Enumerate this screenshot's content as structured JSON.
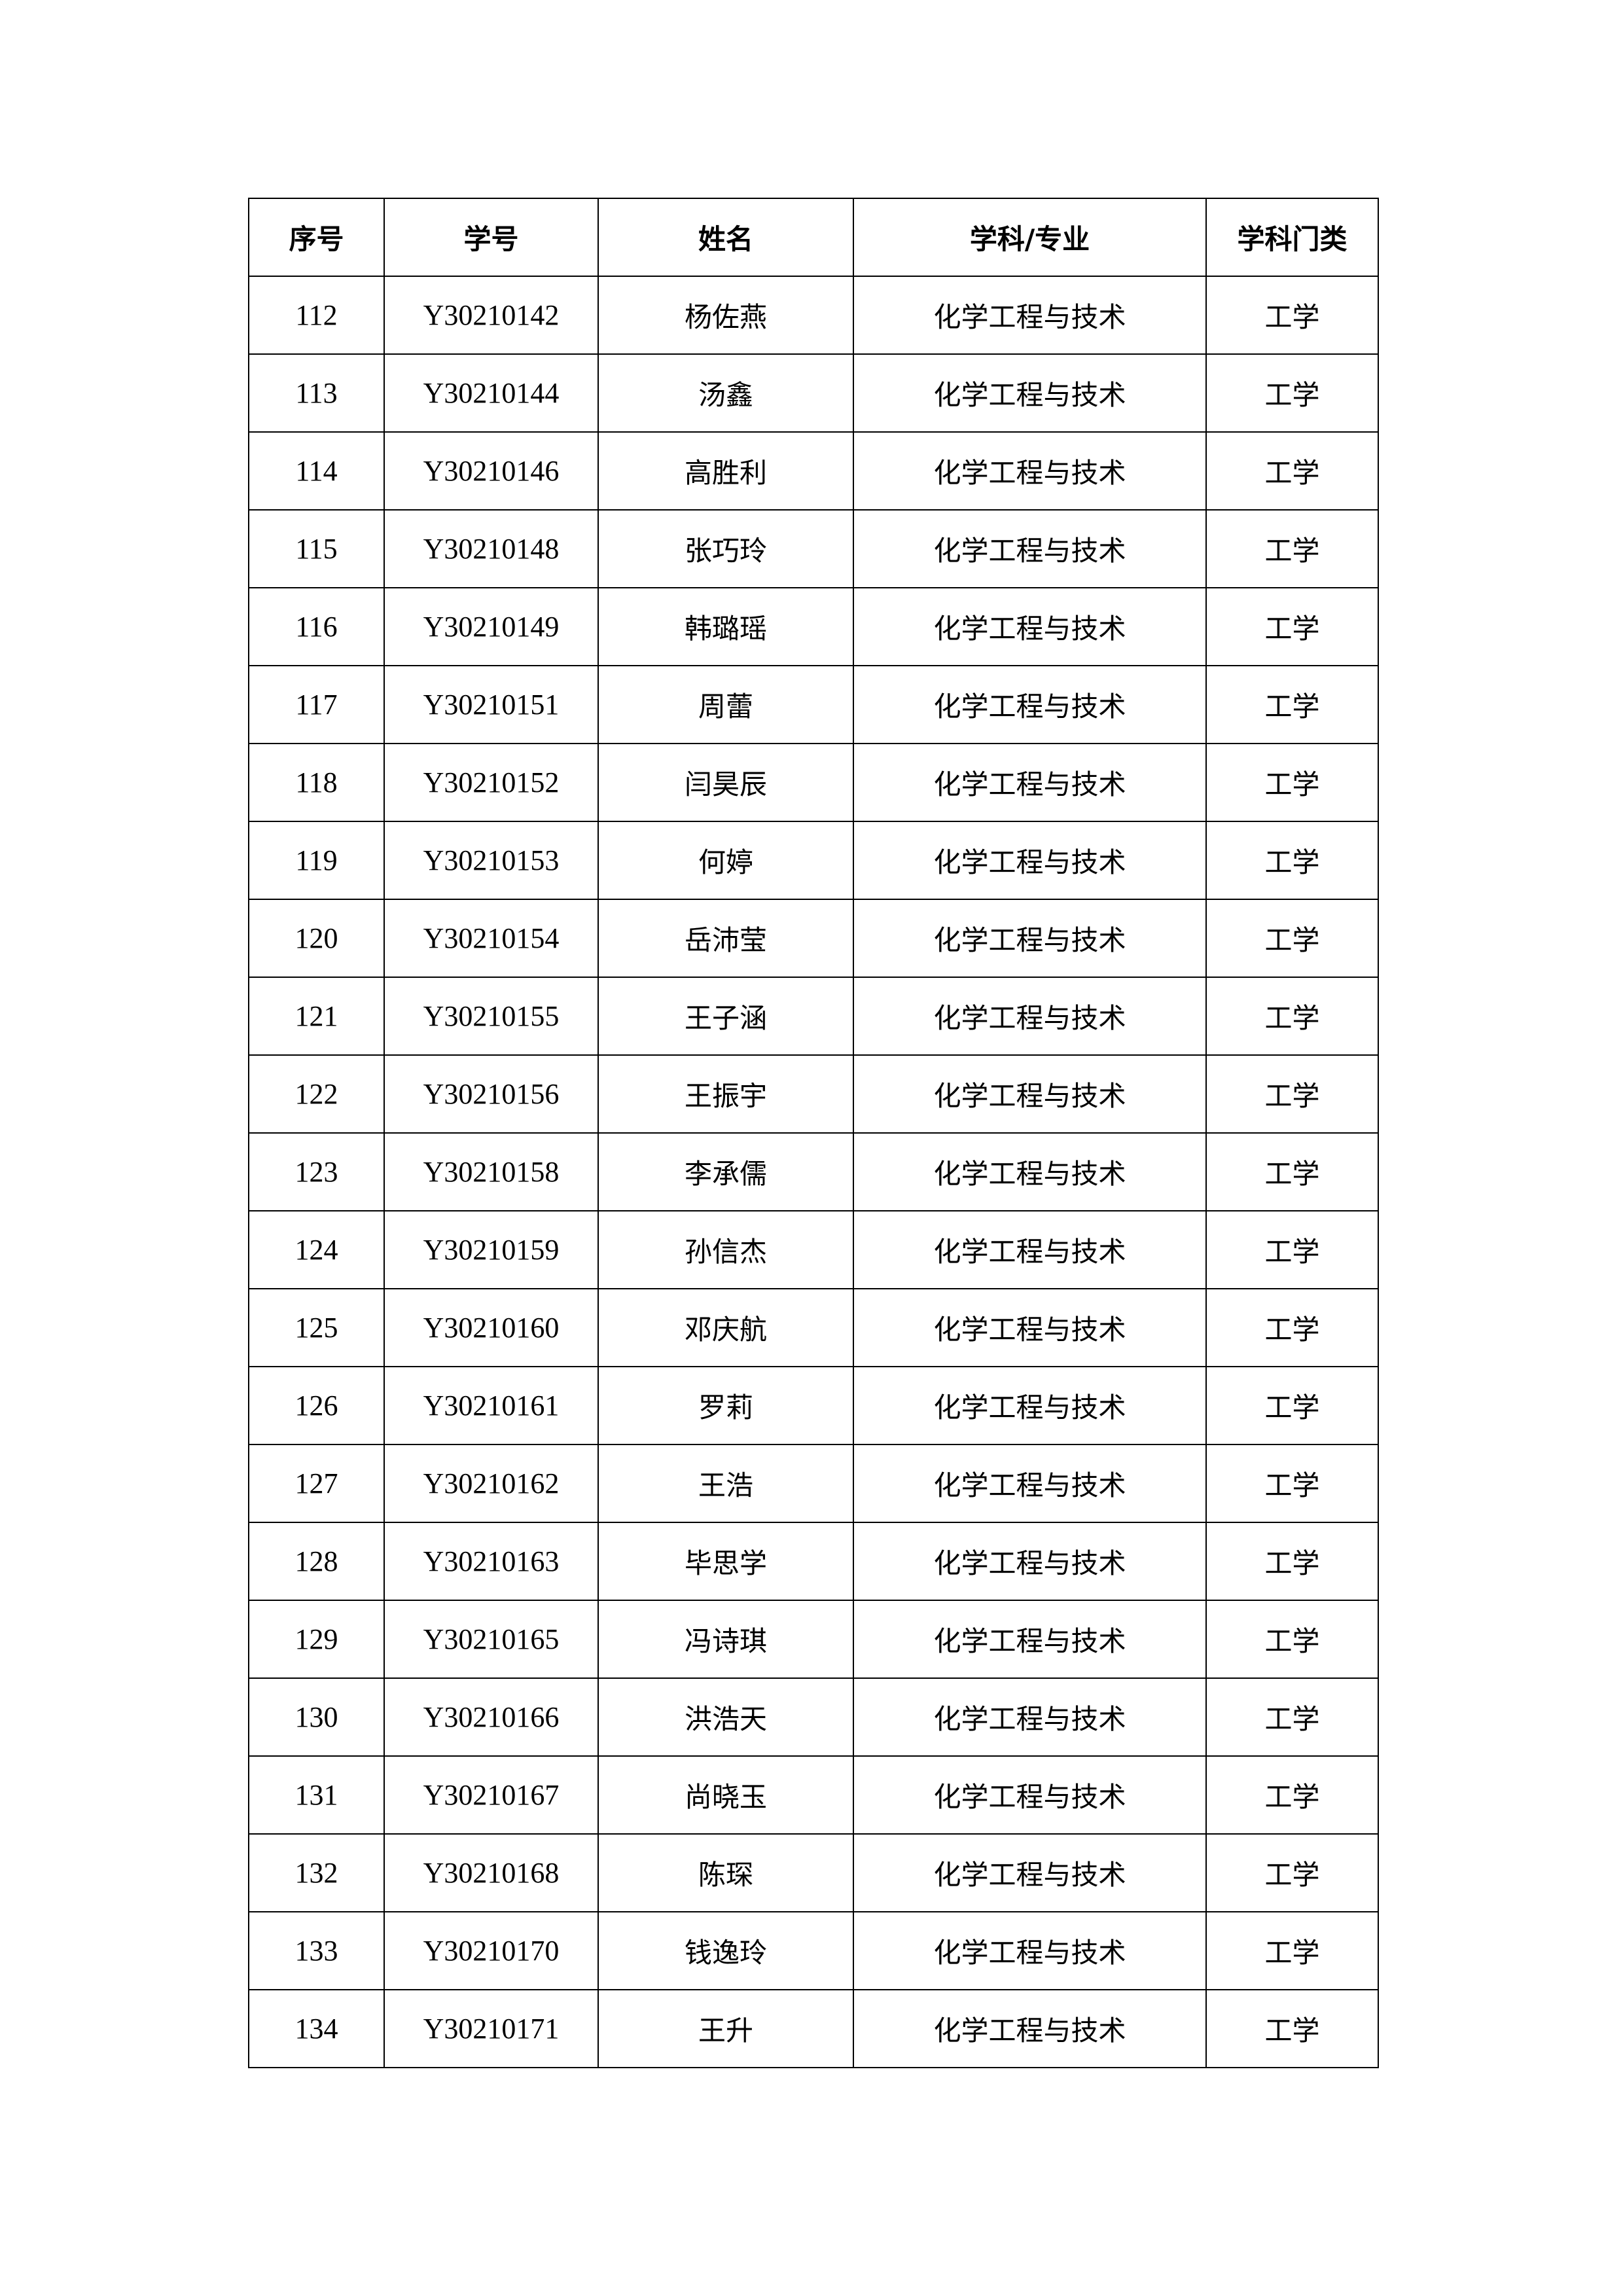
{
  "table": {
    "headers": [
      "序号",
      "学号",
      "姓名",
      "学科/专业",
      "学科门类"
    ],
    "rows": [
      [
        "112",
        "Y30210142",
        "杨佐燕",
        "化学工程与技术",
        "工学"
      ],
      [
        "113",
        "Y30210144",
        "汤鑫",
        "化学工程与技术",
        "工学"
      ],
      [
        "114",
        "Y30210146",
        "高胜利",
        "化学工程与技术",
        "工学"
      ],
      [
        "115",
        "Y30210148",
        "张巧玲",
        "化学工程与技术",
        "工学"
      ],
      [
        "116",
        "Y30210149",
        "韩璐瑶",
        "化学工程与技术",
        "工学"
      ],
      [
        "117",
        "Y30210151",
        "周蕾",
        "化学工程与技术",
        "工学"
      ],
      [
        "118",
        "Y30210152",
        "闫昊辰",
        "化学工程与技术",
        "工学"
      ],
      [
        "119",
        "Y30210153",
        "何婷",
        "化学工程与技术",
        "工学"
      ],
      [
        "120",
        "Y30210154",
        "岳沛莹",
        "化学工程与技术",
        "工学"
      ],
      [
        "121",
        "Y30210155",
        "王子涵",
        "化学工程与技术",
        "工学"
      ],
      [
        "122",
        "Y30210156",
        "王振宇",
        "化学工程与技术",
        "工学"
      ],
      [
        "123",
        "Y30210158",
        "李承儒",
        "化学工程与技术",
        "工学"
      ],
      [
        "124",
        "Y30210159",
        "孙信杰",
        "化学工程与技术",
        "工学"
      ],
      [
        "125",
        "Y30210160",
        "邓庆航",
        "化学工程与技术",
        "工学"
      ],
      [
        "126",
        "Y30210161",
        "罗莉",
        "化学工程与技术",
        "工学"
      ],
      [
        "127",
        "Y30210162",
        "王浩",
        "化学工程与技术",
        "工学"
      ],
      [
        "128",
        "Y30210163",
        "毕思学",
        "化学工程与技术",
        "工学"
      ],
      [
        "129",
        "Y30210165",
        "冯诗琪",
        "化学工程与技术",
        "工学"
      ],
      [
        "130",
        "Y30210166",
        "洪浩天",
        "化学工程与技术",
        "工学"
      ],
      [
        "131",
        "Y30210167",
        "尚晓玉",
        "化学工程与技术",
        "工学"
      ],
      [
        "132",
        "Y30210168",
        "陈琛",
        "化学工程与技术",
        "工学"
      ],
      [
        "133",
        "Y30210170",
        "钱逸玲",
        "化学工程与技术",
        "工学"
      ],
      [
        "134",
        "Y30210171",
        "王升",
        "化学工程与技术",
        "工学"
      ]
    ]
  }
}
